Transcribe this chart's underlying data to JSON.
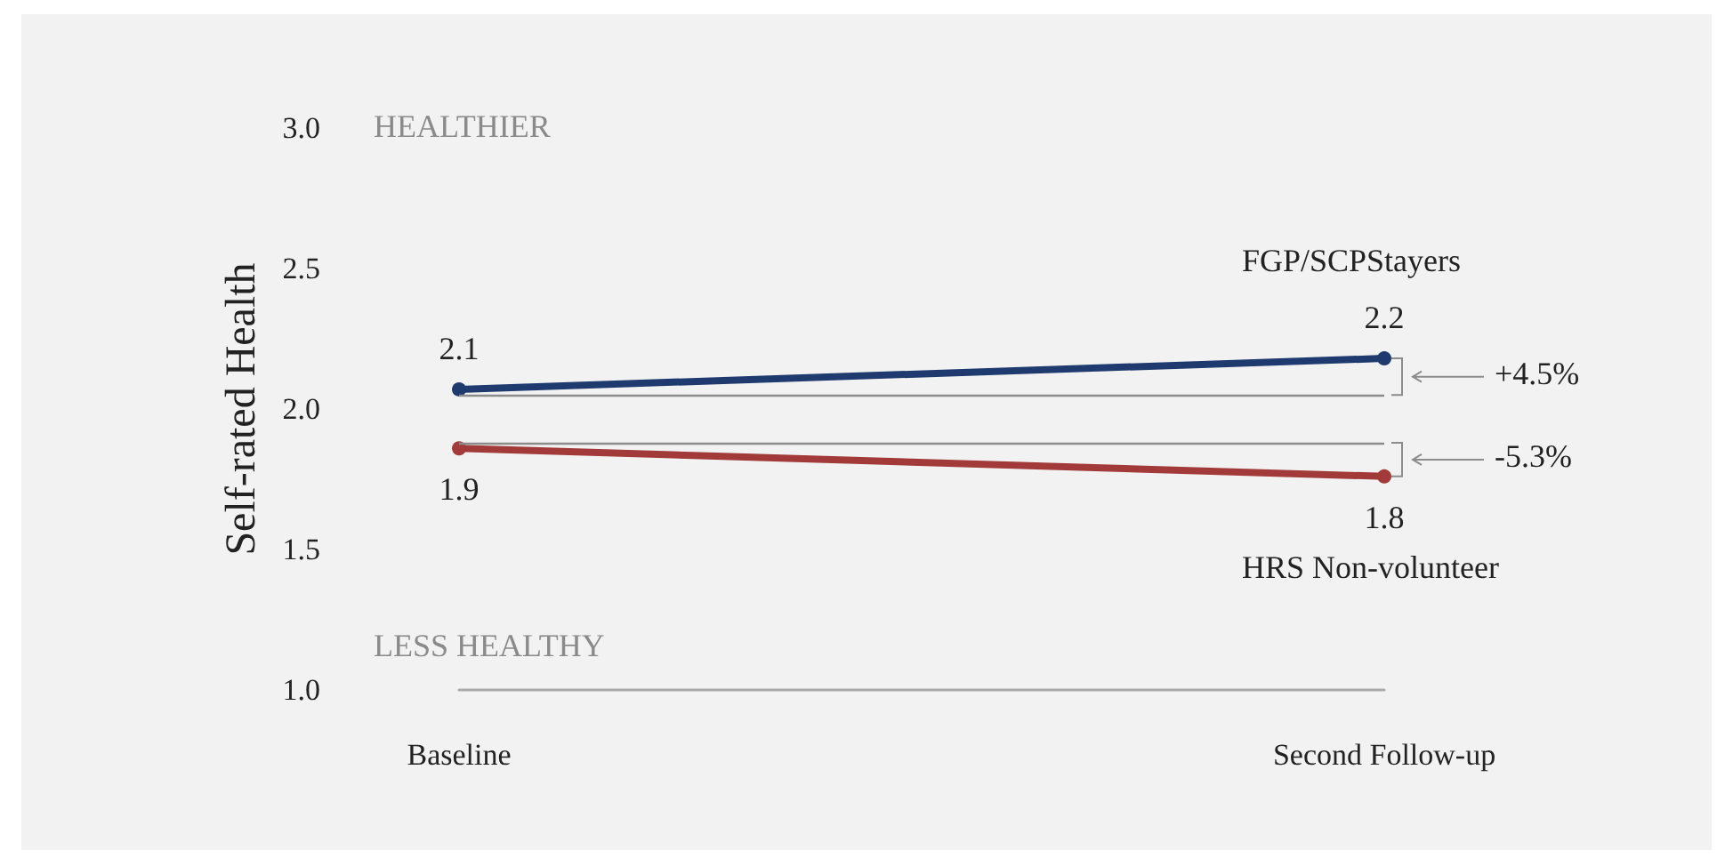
{
  "chart_data": {
    "type": "line",
    "ylabel": "Self-rated Health",
    "categories": [
      "Baseline",
      "Second Follow-up"
    ],
    "series": [
      {
        "name": "FGP/SCPStayers",
        "color": "#1f3a6e",
        "values": [
          2.07,
          2.18
        ],
        "value_labels": [
          "2.1",
          "2.2"
        ]
      },
      {
        "name": "HRS Non-volunteer",
        "color": "#a33a3a",
        "values": [
          1.86,
          1.76
        ],
        "value_labels": [
          "1.9",
          "1.8"
        ]
      }
    ],
    "ylim": [
      1,
      3
    ],
    "yticks": [
      {
        "value": 1,
        "label": "1.0"
      },
      {
        "value": 1.5,
        "label": "1.5"
      },
      {
        "value": 2,
        "label": "2.0"
      },
      {
        "value": 2.5,
        "label": "2.5"
      },
      {
        "value": 3,
        "label": "3.0"
      }
    ],
    "ref_lines": [
      {
        "axis": "y",
        "value": 2.05,
        "color": "#8c8c8c"
      },
      {
        "axis": "y",
        "value": 1.88,
        "color": "#8c8c8c"
      }
    ],
    "annotations": [
      "HEALTHIER",
      "LESS HEALTHY",
      "+4.5%",
      "-5.3%"
    ],
    "marker": "circle",
    "line_style": "solid",
    "grid": false,
    "legend": false
  }
}
